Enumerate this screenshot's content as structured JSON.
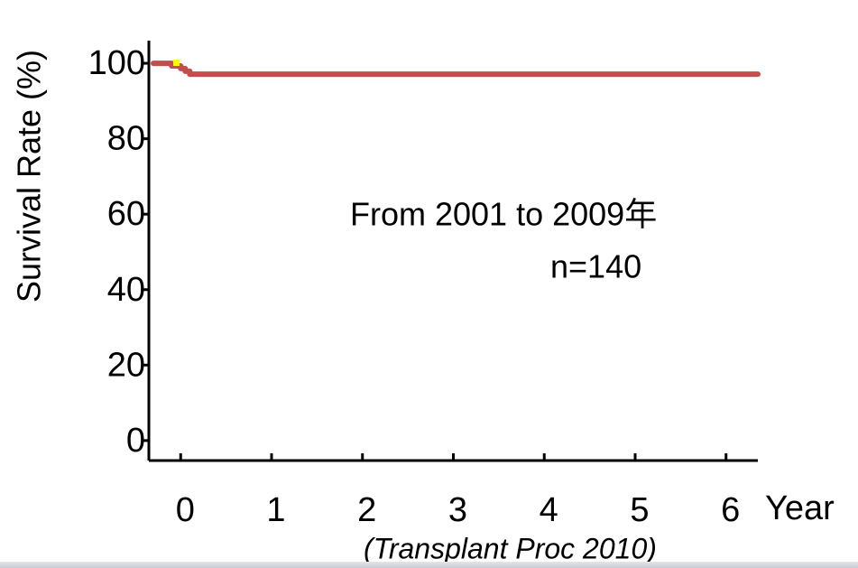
{
  "chart_data": {
    "type": "line",
    "y_label": "Survival Rate (%)",
    "x_label": "Year",
    "annotations": [
      "From 2001  to 2009年",
      "n=140"
    ],
    "source": "(Transplant Proc 2010)",
    "x": [
      -0.3,
      -0.1,
      0,
      0.05,
      0.1,
      6.35
    ],
    "series": [
      {
        "name": "Survival",
        "color": "#c0504d",
        "values": [
          100,
          99.3,
          98.6,
          97.9,
          97.1,
          97.1
        ]
      }
    ],
    "step": true,
    "xlim": [
      -0.35,
      6.35
    ],
    "xticks": [
      0,
      1,
      2,
      3,
      4,
      5,
      6
    ],
    "ylim": [
      -5.3,
      106
    ],
    "yticks": [
      0,
      20,
      40,
      60,
      80,
      100
    ]
  }
}
